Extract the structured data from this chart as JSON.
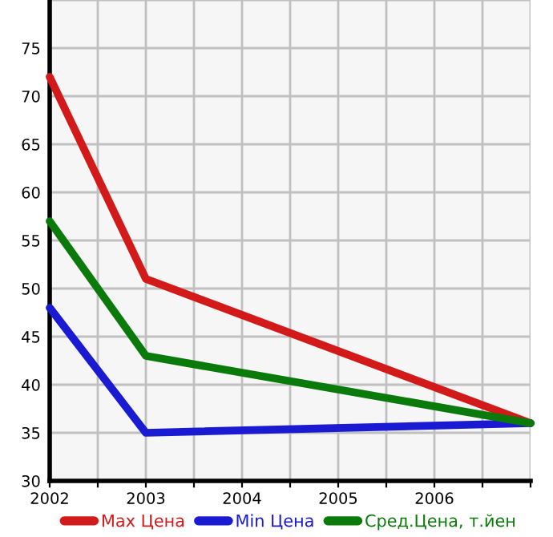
{
  "chart_data": {
    "type": "line",
    "x": [
      2002,
      2003,
      2007
    ],
    "series": [
      {
        "name": "Max Цена",
        "color": "#d21a1a",
        "values": [
          72,
          51,
          36
        ]
      },
      {
        "name": "Min Цена",
        "color": "#1a1ad2",
        "values": [
          48,
          35,
          36
        ]
      },
      {
        "name": "Сред.Цена, т.йен",
        "color": "#0a7a0a",
        "values": [
          57,
          43,
          36
        ]
      }
    ],
    "xlim": [
      2002,
      2007
    ],
    "xticks": [
      2002,
      {
        "value": 2002.5,
        "label": null
      },
      2003,
      {
        "value": 2003.5,
        "label": null
      },
      2004,
      {
        "value": 2004.5,
        "label": null
      },
      2005,
      {
        "value": 2005.5,
        "label": null
      },
      2006,
      {
        "value": 2006.5,
        "label": null
      },
      {
        "value": 2007,
        "label": null
      }
    ],
    "ylim": [
      30,
      80
    ],
    "yticks": [
      30,
      35,
      40,
      45,
      50,
      55,
      60,
      65,
      70,
      75,
      {
        "value": 80,
        "label": null
      }
    ],
    "grid": true,
    "legend": "bottom",
    "marker": "none",
    "line_style": "solid"
  }
}
